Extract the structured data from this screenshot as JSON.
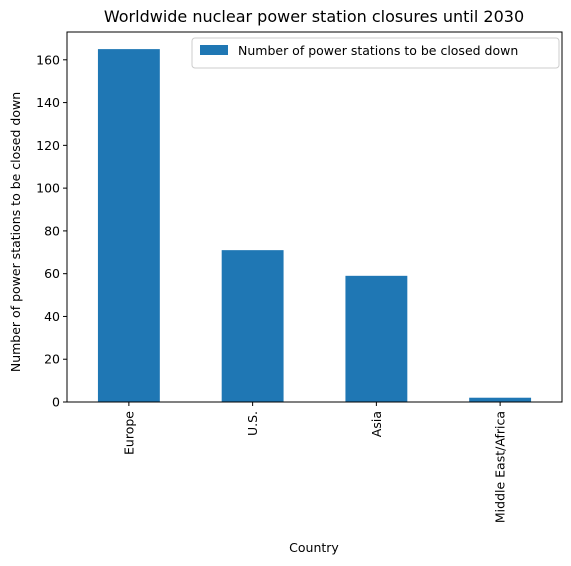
{
  "chart_data": {
    "type": "bar",
    "title": "Worldwide nuclear power station closures until 2030",
    "xlabel": "Country",
    "ylabel": "Number of power stations to be closed down",
    "categories": [
      "Europe",
      "U.S.",
      "Asia",
      "Middle East/Africa"
    ],
    "series": [
      {
        "name": "Number of power stations to be closed down",
        "values": [
          165,
          71,
          59,
          2
        ],
        "color": "#1f77b4"
      }
    ],
    "ylim": [
      0,
      173
    ],
    "yticks": [
      0,
      20,
      40,
      60,
      80,
      100,
      120,
      140,
      160
    ],
    "grid": false,
    "legend_position": "top-right"
  }
}
